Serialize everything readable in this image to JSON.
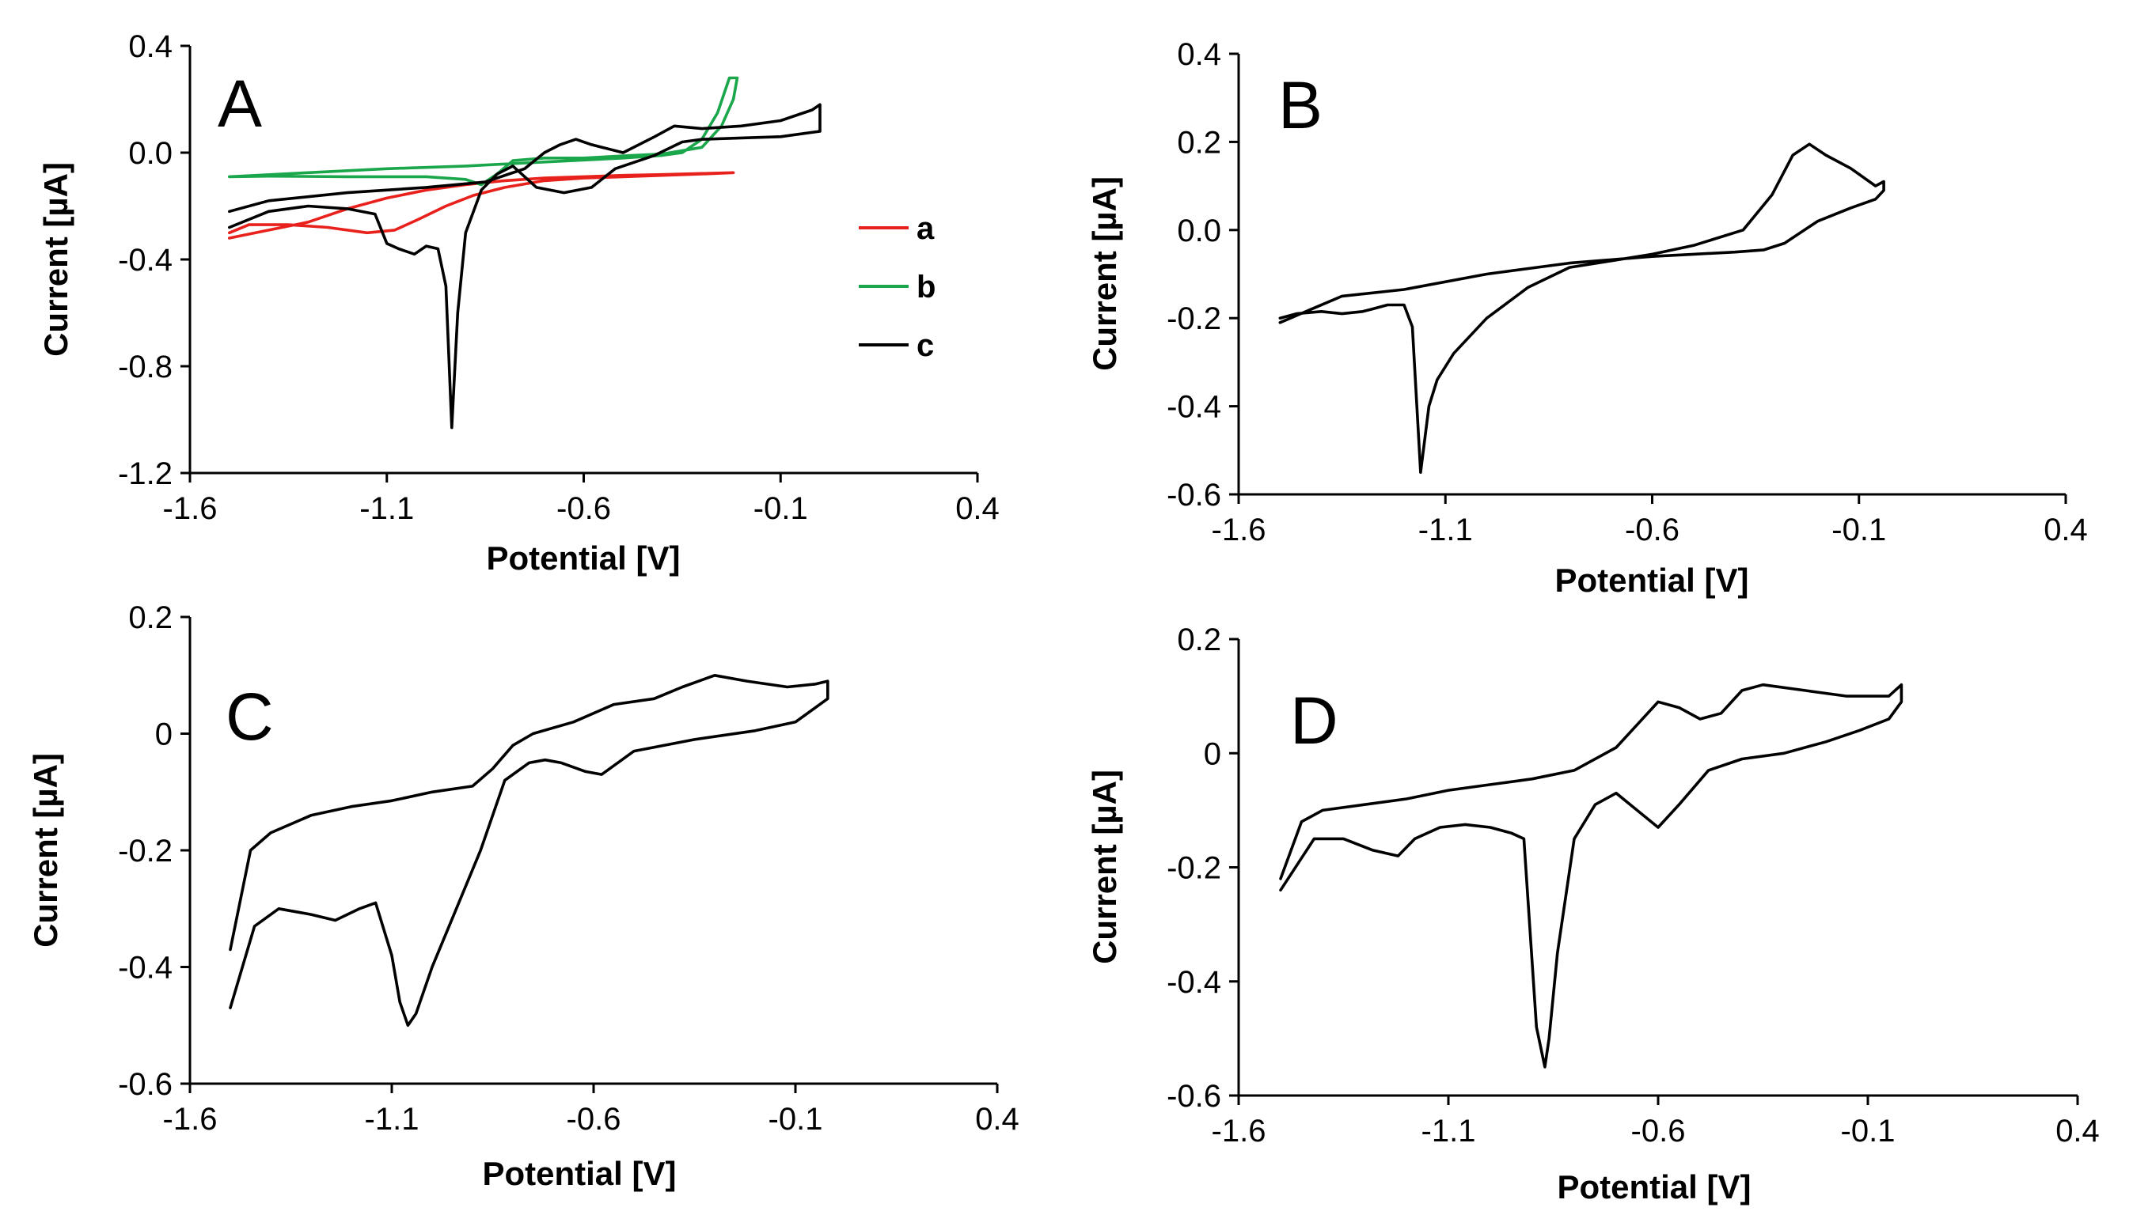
{
  "chart_data": [
    {
      "type": "line",
      "panel": "A",
      "xlabel": "Potential [V]",
      "ylabel": "Current [µA]",
      "xlim": [
        -1.6,
        0.4
      ],
      "ylim": [
        -1.2,
        0.4
      ],
      "xticks": [
        "-1.6",
        "-1.1",
        "-0.6",
        "-0.1",
        "0.4"
      ],
      "xtick_values": [
        -1.6,
        -1.1,
        -0.6,
        -0.1,
        0.4
      ],
      "yticks": [
        "0.4",
        "0.0",
        "-0.4",
        "-0.8",
        "-1.2"
      ],
      "ytick_values": [
        0.4,
        0.0,
        -0.4,
        -0.8,
        -1.2
      ],
      "legend": [
        "a",
        "b",
        "c"
      ],
      "series": [
        {
          "name": "a",
          "color": "#e8211c",
          "points": [
            [
              -1.5,
              -0.32
            ],
            [
              -1.4,
              -0.29
            ],
            [
              -1.3,
              -0.26
            ],
            [
              -1.2,
              -0.21
            ],
            [
              -1.1,
              -0.17
            ],
            [
              -1.0,
              -0.14
            ],
            [
              -0.9,
              -0.12
            ],
            [
              -0.8,
              -0.105
            ],
            [
              -0.7,
              -0.095
            ],
            [
              -0.6,
              -0.09
            ],
            [
              -0.5,
              -0.085
            ],
            [
              -0.4,
              -0.082
            ],
            [
              -0.3,
              -0.078
            ],
            [
              -0.22,
              -0.075
            ],
            [
              -0.3,
              -0.08
            ],
            [
              -0.4,
              -0.085
            ],
            [
              -0.5,
              -0.09
            ],
            [
              -0.6,
              -0.095
            ],
            [
              -0.7,
              -0.105
            ],
            [
              -0.8,
              -0.13
            ],
            [
              -0.88,
              -0.16
            ],
            [
              -0.95,
              -0.2
            ],
            [
              -1.02,
              -0.25
            ],
            [
              -1.08,
              -0.29
            ],
            [
              -1.15,
              -0.3
            ],
            [
              -1.25,
              -0.28
            ],
            [
              -1.35,
              -0.27
            ],
            [
              -1.45,
              -0.27
            ],
            [
              -1.5,
              -0.3
            ]
          ]
        },
        {
          "name": "b",
          "color": "#1aa64a",
          "points": [
            [
              -1.5,
              -0.09
            ],
            [
              -1.3,
              -0.075
            ],
            [
              -1.1,
              -0.06
            ],
            [
              -0.9,
              -0.05
            ],
            [
              -0.7,
              -0.035
            ],
            [
              -0.5,
              -0.02
            ],
            [
              -0.4,
              -0.01
            ],
            [
              -0.35,
              0.0
            ],
            [
              -0.3,
              0.05
            ],
            [
              -0.26,
              0.15
            ],
            [
              -0.23,
              0.28
            ],
            [
              -0.21,
              0.28
            ],
            [
              -0.22,
              0.2
            ],
            [
              -0.25,
              0.1
            ],
            [
              -0.3,
              0.02
            ],
            [
              -0.4,
              -0.005
            ],
            [
              -0.5,
              -0.012
            ],
            [
              -0.6,
              -0.02
            ],
            [
              -0.7,
              -0.02
            ],
            [
              -0.78,
              -0.03
            ],
            [
              -0.82,
              -0.08
            ],
            [
              -0.86,
              -0.12
            ],
            [
              -0.9,
              -0.1
            ],
            [
              -1.0,
              -0.09
            ],
            [
              -1.2,
              -0.09
            ],
            [
              -1.4,
              -0.088
            ],
            [
              -1.5,
              -0.09
            ]
          ]
        },
        {
          "name": "c",
          "color": "#000000",
          "points": [
            [
              -1.5,
              -0.22
            ],
            [
              -1.4,
              -0.18
            ],
            [
              -1.2,
              -0.15
            ],
            [
              -1.0,
              -0.13
            ],
            [
              -0.85,
              -0.11
            ],
            [
              -0.75,
              -0.06
            ],
            [
              -0.7,
              0.0
            ],
            [
              -0.66,
              0.03
            ],
            [
              -0.62,
              0.05
            ],
            [
              -0.58,
              0.03
            ],
            [
              -0.5,
              0.0
            ],
            [
              -0.42,
              0.06
            ],
            [
              -0.37,
              0.1
            ],
            [
              -0.3,
              0.09
            ],
            [
              -0.2,
              0.1
            ],
            [
              -0.1,
              0.12
            ],
            [
              -0.02,
              0.16
            ],
            [
              0.0,
              0.18
            ],
            [
              0.0,
              0.08
            ],
            [
              -0.1,
              0.06
            ],
            [
              -0.2,
              0.055
            ],
            [
              -0.3,
              0.05
            ],
            [
              -0.35,
              0.04
            ],
            [
              -0.42,
              -0.01
            ],
            [
              -0.52,
              -0.06
            ],
            [
              -0.58,
              -0.13
            ],
            [
              -0.65,
              -0.15
            ],
            [
              -0.72,
              -0.13
            ],
            [
              -0.78,
              -0.05
            ],
            [
              -0.82,
              -0.08
            ],
            [
              -0.86,
              -0.14
            ],
            [
              -0.9,
              -0.3
            ],
            [
              -0.92,
              -0.6
            ],
            [
              -0.935,
              -1.03
            ],
            [
              -0.95,
              -0.5
            ],
            [
              -0.97,
              -0.36
            ],
            [
              -1.0,
              -0.35
            ],
            [
              -1.03,
              -0.38
            ],
            [
              -1.07,
              -0.36
            ],
            [
              -1.1,
              -0.34
            ],
            [
              -1.13,
              -0.23
            ],
            [
              -1.2,
              -0.21
            ],
            [
              -1.3,
              -0.2
            ],
            [
              -1.4,
              -0.22
            ],
            [
              -1.5,
              -0.28
            ]
          ]
        }
      ]
    },
    {
      "type": "line",
      "panel": "B",
      "xlabel": "Potential [V]",
      "ylabel": "Current [µA]",
      "xlim": [
        -1.6,
        0.4
      ],
      "ylim": [
        -0.6,
        0.4
      ],
      "xticks": [
        "-1.6",
        "-1.1",
        "-0.6",
        "-0.1",
        "0.4"
      ],
      "xtick_values": [
        -1.6,
        -1.1,
        -0.6,
        -0.1,
        0.4
      ],
      "yticks": [
        "0.4",
        "0.2",
        "0.0",
        "-0.2",
        "-0.4",
        "-0.6"
      ],
      "ytick_values": [
        0.4,
        0.2,
        0.0,
        -0.2,
        -0.4,
        -0.6
      ],
      "series": [
        {
          "name": "B",
          "color": "#000000",
          "points": [
            [
              -1.5,
              -0.21
            ],
            [
              -1.45,
              -0.19
            ],
            [
              -1.35,
              -0.15
            ],
            [
              -1.2,
              -0.135
            ],
            [
              -1.0,
              -0.1
            ],
            [
              -0.8,
              -0.075
            ],
            [
              -0.6,
              -0.06
            ],
            [
              -0.5,
              -0.055
            ],
            [
              -0.4,
              -0.05
            ],
            [
              -0.33,
              -0.045
            ],
            [
              -0.28,
              -0.03
            ],
            [
              -0.2,
              0.02
            ],
            [
              -0.12,
              0.05
            ],
            [
              -0.06,
              0.07
            ],
            [
              -0.04,
              0.09
            ],
            [
              -0.04,
              0.11
            ],
            [
              -0.06,
              0.1
            ],
            [
              -0.12,
              0.14
            ],
            [
              -0.18,
              0.17
            ],
            [
              -0.22,
              0.195
            ],
            [
              -0.26,
              0.17
            ],
            [
              -0.31,
              0.08
            ],
            [
              -0.38,
              0.0
            ],
            [
              -0.5,
              -0.035
            ],
            [
              -0.6,
              -0.055
            ],
            [
              -0.7,
              -0.07
            ],
            [
              -0.8,
              -0.085
            ],
            [
              -0.9,
              -0.13
            ],
            [
              -1.0,
              -0.2
            ],
            [
              -1.08,
              -0.28
            ],
            [
              -1.12,
              -0.34
            ],
            [
              -1.14,
              -0.4
            ],
            [
              -1.16,
              -0.55
            ],
            [
              -1.18,
              -0.22
            ],
            [
              -1.2,
              -0.17
            ],
            [
              -1.24,
              -0.17
            ],
            [
              -1.28,
              -0.18
            ],
            [
              -1.3,
              -0.185
            ],
            [
              -1.35,
              -0.19
            ],
            [
              -1.4,
              -0.185
            ],
            [
              -1.46,
              -0.19
            ],
            [
              -1.5,
              -0.2
            ]
          ]
        }
      ]
    },
    {
      "type": "line",
      "panel": "C",
      "xlabel": "Potential [V]",
      "ylabel": "Current [µA]",
      "xlim": [
        -1.6,
        0.4
      ],
      "ylim": [
        -0.6,
        0.2
      ],
      "xticks": [
        "-1.6",
        "-1.1",
        "-0.6",
        "-0.1",
        "0.4"
      ],
      "xtick_values": [
        -1.6,
        -1.1,
        -0.6,
        -0.1,
        0.4
      ],
      "yticks": [
        "0.2",
        "0",
        "-0.2",
        "-0.4",
        "-0.6"
      ],
      "ytick_values": [
        0.2,
        0.0,
        -0.2,
        -0.4,
        -0.6
      ],
      "series": [
        {
          "name": "C",
          "color": "#000000",
          "points": [
            [
              -1.5,
              -0.37
            ],
            [
              -1.45,
              -0.2
            ],
            [
              -1.4,
              -0.17
            ],
            [
              -1.3,
              -0.14
            ],
            [
              -1.2,
              -0.125
            ],
            [
              -1.1,
              -0.115
            ],
            [
              -1.0,
              -0.1
            ],
            [
              -0.9,
              -0.09
            ],
            [
              -0.85,
              -0.06
            ],
            [
              -0.8,
              -0.02
            ],
            [
              -0.75,
              0.0
            ],
            [
              -0.65,
              0.02
            ],
            [
              -0.55,
              0.05
            ],
            [
              -0.45,
              0.06
            ],
            [
              -0.38,
              0.08
            ],
            [
              -0.3,
              0.1
            ],
            [
              -0.22,
              0.09
            ],
            [
              -0.12,
              0.08
            ],
            [
              -0.05,
              0.085
            ],
            [
              -0.02,
              0.09
            ],
            [
              -0.02,
              0.06
            ],
            [
              -0.1,
              0.02
            ],
            [
              -0.2,
              0.005
            ],
            [
              -0.35,
              -0.01
            ],
            [
              -0.5,
              -0.03
            ],
            [
              -0.58,
              -0.07
            ],
            [
              -0.62,
              -0.065
            ],
            [
              -0.68,
              -0.05
            ],
            [
              -0.72,
              -0.045
            ],
            [
              -0.76,
              -0.05
            ],
            [
              -0.82,
              -0.08
            ],
            [
              -0.88,
              -0.2
            ],
            [
              -0.94,
              -0.3
            ],
            [
              -1.0,
              -0.4
            ],
            [
              -1.04,
              -0.48
            ],
            [
              -1.06,
              -0.5
            ],
            [
              -1.08,
              -0.46
            ],
            [
              -1.1,
              -0.38
            ],
            [
              -1.14,
              -0.29
            ],
            [
              -1.18,
              -0.3
            ],
            [
              -1.24,
              -0.32
            ],
            [
              -1.3,
              -0.31
            ],
            [
              -1.38,
              -0.3
            ],
            [
              -1.44,
              -0.33
            ],
            [
              -1.5,
              -0.47
            ]
          ]
        }
      ]
    },
    {
      "type": "line",
      "panel": "D",
      "xlabel": "Potential [V]",
      "ylabel": "Current [µA]",
      "xlim": [
        -1.6,
        0.4
      ],
      "ylim": [
        -0.6,
        0.2
      ],
      "xticks": [
        "-1.6",
        "-1.1",
        "-0.6",
        "-0.1",
        "0.4"
      ],
      "xtick_values": [
        -1.6,
        -1.1,
        -0.6,
        -0.1,
        0.4
      ],
      "yticks": [
        "0.2",
        "0",
        "-0.2",
        "-0.4",
        "-0.6"
      ],
      "ytick_values": [
        0.2,
        0.0,
        -0.2,
        -0.4,
        -0.6
      ],
      "series": [
        {
          "name": "D",
          "color": "#000000",
          "points": [
            [
              -1.5,
              -0.22
            ],
            [
              -1.45,
              -0.12
            ],
            [
              -1.4,
              -0.1
            ],
            [
              -1.3,
              -0.09
            ],
            [
              -1.2,
              -0.08
            ],
            [
              -1.1,
              -0.065
            ],
            [
              -1.0,
              -0.055
            ],
            [
              -0.9,
              -0.045
            ],
            [
              -0.8,
              -0.03
            ],
            [
              -0.7,
              0.01
            ],
            [
              -0.65,
              0.05
            ],
            [
              -0.6,
              0.09
            ],
            [
              -0.55,
              0.08
            ],
            [
              -0.5,
              0.06
            ],
            [
              -0.45,
              0.07
            ],
            [
              -0.4,
              0.11
            ],
            [
              -0.35,
              0.12
            ],
            [
              -0.25,
              0.11
            ],
            [
              -0.15,
              0.1
            ],
            [
              -0.05,
              0.1
            ],
            [
              -0.02,
              0.12
            ],
            [
              -0.02,
              0.09
            ],
            [
              -0.05,
              0.06
            ],
            [
              -0.12,
              0.04
            ],
            [
              -0.2,
              0.02
            ],
            [
              -0.3,
              0.0
            ],
            [
              -0.4,
              -0.01
            ],
            [
              -0.48,
              -0.03
            ],
            [
              -0.55,
              -0.09
            ],
            [
              -0.6,
              -0.13
            ],
            [
              -0.65,
              -0.1
            ],
            [
              -0.7,
              -0.07
            ],
            [
              -0.75,
              -0.09
            ],
            [
              -0.8,
              -0.15
            ],
            [
              -0.84,
              -0.35
            ],
            [
              -0.86,
              -0.5
            ],
            [
              -0.87,
              -0.55
            ],
            [
              -0.89,
              -0.48
            ],
            [
              -0.92,
              -0.15
            ],
            [
              -0.95,
              -0.14
            ],
            [
              -1.0,
              -0.13
            ],
            [
              -1.06,
              -0.125
            ],
            [
              -1.12,
              -0.13
            ],
            [
              -1.18,
              -0.15
            ],
            [
              -1.22,
              -0.18
            ],
            [
              -1.28,
              -0.17
            ],
            [
              -1.35,
              -0.15
            ],
            [
              -1.42,
              -0.15
            ],
            [
              -1.5,
              -0.24
            ]
          ]
        }
      ]
    }
  ]
}
